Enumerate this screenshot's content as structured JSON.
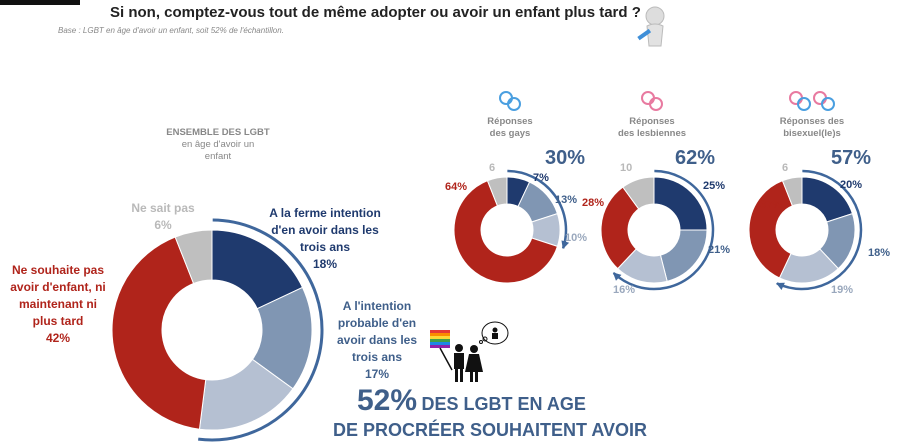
{
  "title": "Si non, comptez-vous tout de même adopter ou avoir un enfant plus tard ?",
  "subtitle": "Base : LGBT en âge d'avoir un enfant, soit 52% de l'échantillon.",
  "colors": {
    "firm": "#1f3a6e",
    "probable": "#8096b3",
    "later": "#b5c0d2",
    "no": "#b0241b",
    "dk": "#bfbfbf",
    "arc": "#3f679c"
  },
  "main": {
    "group_lines": [
      "ENSEMBLE DES LGBT",
      "en âge d'avoir un",
      "enfant"
    ],
    "dk_label": [
      "Ne sait pas",
      "6%"
    ],
    "firm_label": [
      "A la ferme intention",
      "d'en avoir dans les",
      "trois ans",
      "18%"
    ],
    "probable_label": [
      "A l'intention",
      "probable d'en",
      "avoir dans les",
      "trois ans",
      "17%"
    ],
    "no_label": [
      "Ne souhaite pas",
      "avoir d'enfant, ni",
      "maintenant ni",
      "plus tard",
      "42%"
    ]
  },
  "headline": {
    "pct": "52%",
    "text1": "DES LGBT EN AGE",
    "text2": "DE PROCRÉER SOUHAITENT AVOIR"
  },
  "subgroups": [
    {
      "lines": [
        "Réponses",
        "des gays"
      ],
      "total": "30%",
      "labels": {
        "firm": "7%",
        "probable": "13%",
        "later": "10%",
        "no": "64%",
        "dk": "6"
      }
    },
    {
      "lines": [
        "Réponses",
        "des lesbiennes"
      ],
      "total": "62%",
      "labels": {
        "firm": "25%",
        "probable": "21%",
        "later": "16%",
        "no": "28%",
        "dk": "10"
      }
    },
    {
      "lines": [
        "Réponses des",
        "bisexuel(le)s"
      ],
      "total": "57%",
      "labels": {
        "firm": "20%",
        "probable": "18%",
        "later": "19%",
        "no": "37%",
        "dk": "6"
      }
    }
  ],
  "chart_data": [
    {
      "type": "pie",
      "title": "ENSEMBLE DES LGBT en âge d'avoir un enfant",
      "categories": [
        "A la ferme intention d'en avoir dans les trois ans",
        "A l'intention probable d'en avoir dans les trois ans",
        "Plus tard",
        "Ne souhaite pas avoir d'enfant, ni maintenant ni plus tard",
        "Ne sait pas"
      ],
      "values": [
        18,
        17,
        17,
        42,
        6
      ],
      "highlight_total": 52
    },
    {
      "type": "pie",
      "title": "Réponses des gays",
      "values": [
        7,
        13,
        10,
        64,
        6
      ],
      "highlight_total": 30
    },
    {
      "type": "pie",
      "title": "Réponses des lesbiennes",
      "values": [
        25,
        21,
        16,
        28,
        10
      ],
      "highlight_total": 62
    },
    {
      "type": "pie",
      "title": "Réponses des bisexuel(le)s",
      "values": [
        20,
        18,
        19,
        37,
        6
      ],
      "highlight_total": 57
    }
  ]
}
